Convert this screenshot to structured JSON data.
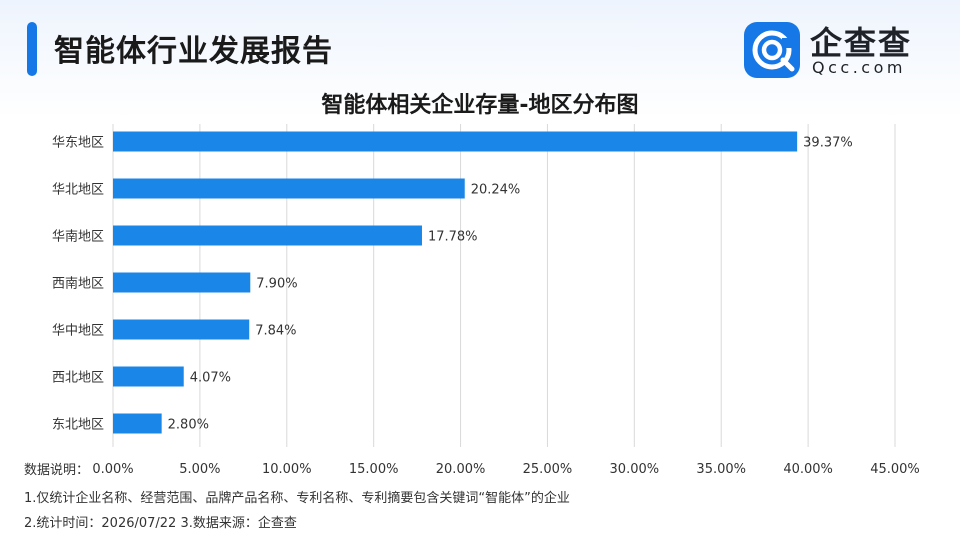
{
  "header": {
    "title": "智能体行业发展报告"
  },
  "brand": {
    "logo_cn": "企查查",
    "logo_en": "Qcc.com",
    "color": "#1677e6"
  },
  "chart_data": {
    "type": "bar",
    "orientation": "horizontal",
    "title": "智能体相关企业存量-地区分布图",
    "categories": [
      "华东地区",
      "华北地区",
      "华南地区",
      "西南地区",
      "华中地区",
      "西北地区",
      "东北地区"
    ],
    "values": [
      39.37,
      20.24,
      17.78,
      7.9,
      7.84,
      4.07,
      2.8
    ],
    "value_labels": [
      "39.37%",
      "20.24%",
      "17.78%",
      "7.90%",
      "7.84%",
      "4.07%",
      "2.80%"
    ],
    "xlim": [
      0,
      45
    ],
    "ticks": [
      0,
      5,
      10,
      15,
      20,
      25,
      30,
      35,
      40,
      45
    ],
    "tick_labels": [
      "0.00%",
      "5.00%",
      "10.00%",
      "15.00%",
      "20.00%",
      "25.00%",
      "30.00%",
      "35.00%",
      "40.00%",
      "45.00%"
    ],
    "grid": true,
    "bar_color": "#1a86e8",
    "grid_color": "#d9d9d9"
  },
  "notes": {
    "axis_caption": "数据说明：",
    "line1": "1.仅统计企业名称、经营范围、品牌产品名称、专利名称、专利摘要包含关键词“智能体”的企业",
    "line2": "2.统计时间：2026/07/22    3.数据来源：企查查"
  }
}
